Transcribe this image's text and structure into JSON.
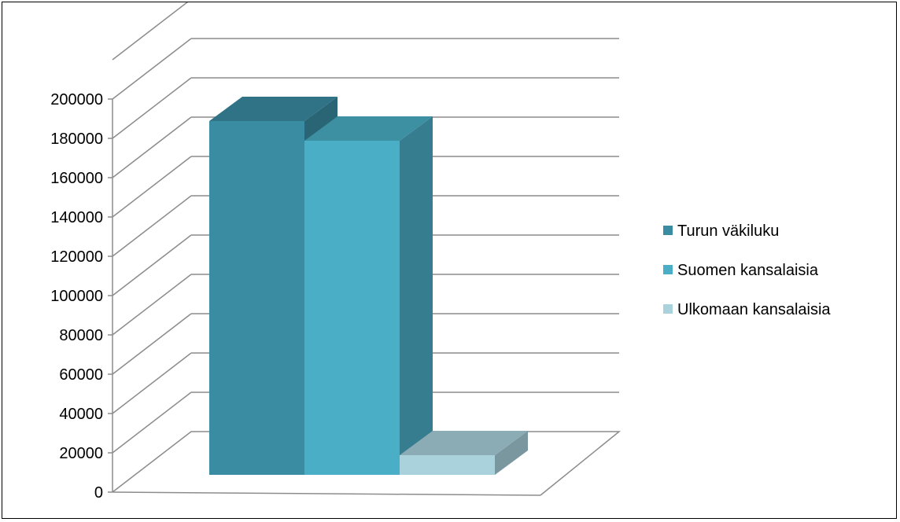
{
  "chart_data": {
    "type": "bar",
    "style": "3d-clustered-column",
    "title": "",
    "xlabel": "",
    "ylabel": "",
    "ylim": [
      0,
      200000
    ],
    "y_ticks": [
      "0",
      "20000",
      "40000",
      "60000",
      "80000",
      "100000",
      "120000",
      "140000",
      "160000",
      "180000",
      "200000"
    ],
    "grid": true,
    "legend_position": "right",
    "series": [
      {
        "name": "Turun väkiluku",
        "value": 180000,
        "color": "#3a8ca3"
      },
      {
        "name": "Suomen kansalaisia",
        "value": 170000,
        "color": "#4aaec6"
      },
      {
        "name": "Ulkomaan kansalaisia",
        "value": 10000,
        "color": "#a9d2dd"
      }
    ]
  }
}
